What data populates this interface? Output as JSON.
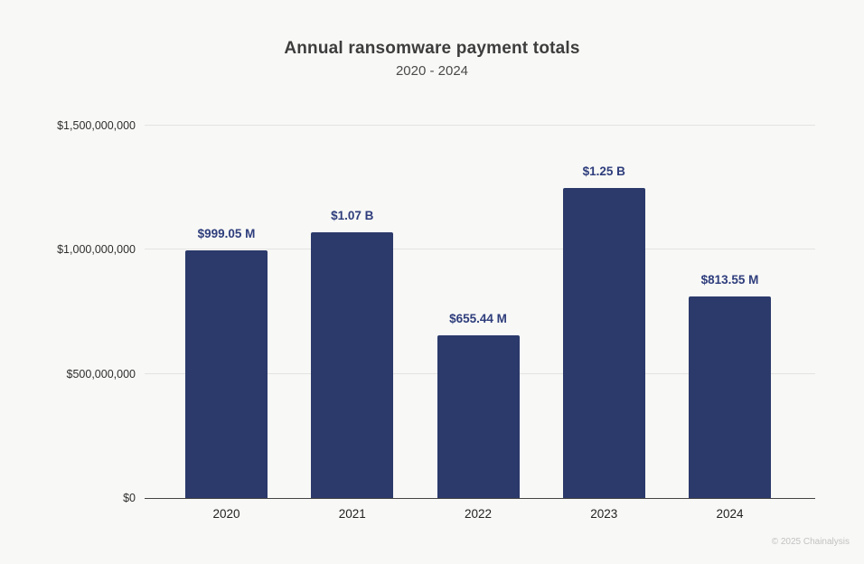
{
  "footer": "© 2025 Chainalysis",
  "colors": {
    "background": "#f8f8f6",
    "bar": "#2b3a6b",
    "value_label": "#2e3d7c",
    "title": "#3d3d3d",
    "gridline": "#e3e3e1",
    "axis_line": "#444444",
    "footer": "#c2c2c2"
  },
  "chart_data": {
    "type": "bar",
    "title": "Annual ransomware payment totals",
    "subtitle": "2020 - 2024",
    "categories": [
      "2020",
      "2021",
      "2022",
      "2023",
      "2024"
    ],
    "values": [
      999050000,
      1070000000,
      655440000,
      1250000000,
      813550000
    ],
    "value_labels": [
      "$999.05 M",
      "$1.07 B",
      "$655.44 M",
      "$1.25 B",
      "$813.55 M"
    ],
    "series_name": "Annual ransomware payments (USD)",
    "xlabel": "",
    "ylabel": "",
    "ylim": [
      0,
      1500000000
    ],
    "yticks": [
      {
        "value": 0,
        "label": "$0"
      },
      {
        "value": 500000000,
        "label": "$500,000,000"
      },
      {
        "value": 1000000000,
        "label": "$1,000,000,000"
      },
      {
        "value": 1500000000,
        "label": "$1,500,000,000"
      }
    ],
    "grid": true,
    "legend": false
  }
}
